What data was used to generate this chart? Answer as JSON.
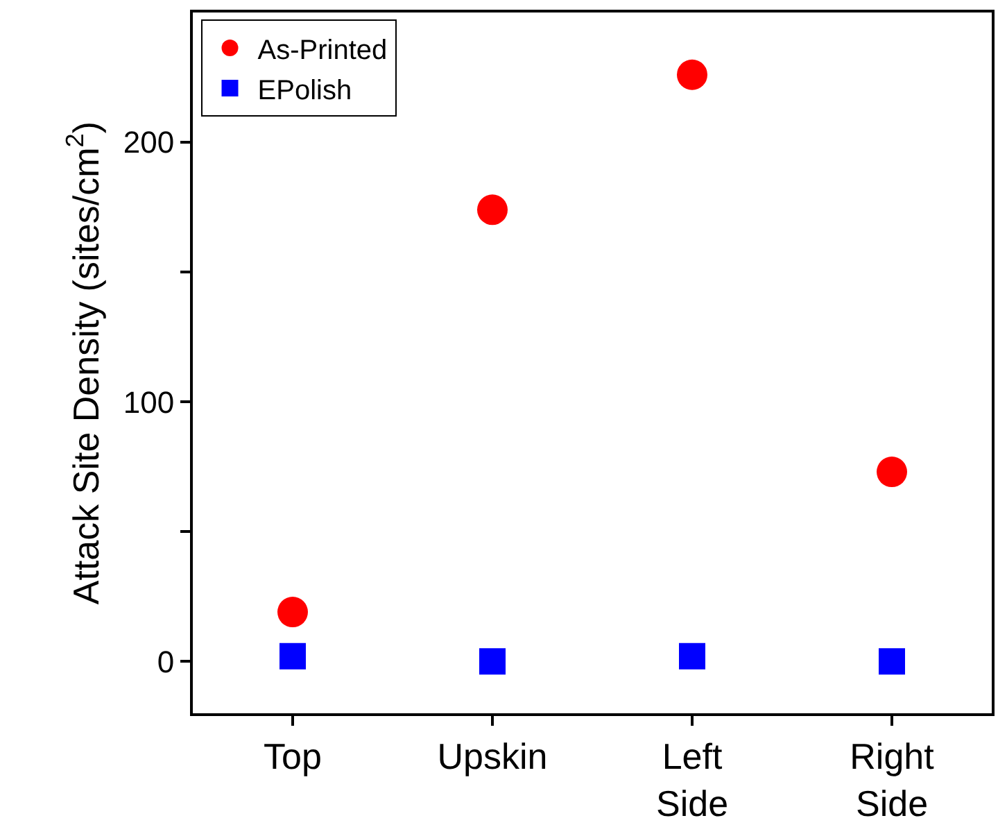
{
  "chart_data": {
    "type": "scatter",
    "ylabel": "Attack Site Density (sites/cm$^{2}$)",
    "categories": [
      "Top",
      "Upskin",
      "Left Side",
      "Right Side"
    ],
    "series": [
      {
        "name": "As-Printed",
        "color": "#ff0000",
        "marker": "circle",
        "values": [
          19,
          174,
          226,
          73
        ]
      },
      {
        "name": "EPolish",
        "color": "#0000ff",
        "marker": "square",
        "values": [
          2,
          0,
          2,
          0
        ]
      }
    ],
    "ylim": [
      -20,
      250
    ],
    "yticks": [
      0,
      {
        "value": 50,
        "label": null
      },
      100,
      {
        "value": 150,
        "label": null
      },
      200
    ],
    "legend": "top left"
  }
}
